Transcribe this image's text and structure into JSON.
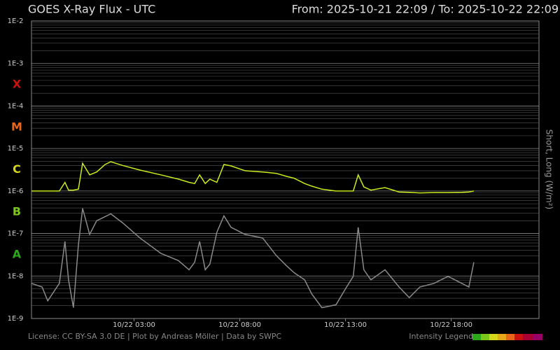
{
  "header": {
    "title": "GOES X-Ray Flux - UTC",
    "range": "From: 2025-10-21 22:09  /  To: 2025-10-22 22:09"
  },
  "footer": {
    "credits": "License: CC BY-SA 3.0 DE | Plot by Andreas Möller | Data by SWPC",
    "legend": "Intensity Legend"
  },
  "chart_data": {
    "type": "line",
    "y_label": "Short, Long (W/m²)",
    "log_y": true,
    "grid": true,
    "ylim": [
      1e-09,
      0.01
    ],
    "yticks": [
      {
        "value": 0.01,
        "label": "1E-2"
      },
      {
        "value": 0.001,
        "label": "1E-3"
      },
      {
        "value": 0.0001,
        "label": "1E-4"
      },
      {
        "value": 1e-05,
        "label": "1E-5"
      },
      {
        "value": 1e-06,
        "label": "1E-6"
      },
      {
        "value": 1e-07,
        "label": "1E-7"
      },
      {
        "value": 1e-08,
        "label": "1E-8"
      },
      {
        "value": 1e-09,
        "label": "1E-9"
      }
    ],
    "classes": [
      {
        "label": "X",
        "color": "#cc1111"
      },
      {
        "label": "M",
        "color": "#e8661a"
      },
      {
        "label": "C",
        "color": "#d8d81a"
      },
      {
        "label": "B",
        "color": "#7cc81a"
      },
      {
        "label": "A",
        "color": "#2aa81a"
      }
    ],
    "xlim": [
      "10/21 22:09",
      "10/22 22:09"
    ],
    "xticks": [
      "10/22 03:00",
      "10/22 08:00",
      "10/22 13:00",
      "10/22 18:00"
    ],
    "x": [
      "10/21 22:09",
      "10/21 22:39",
      "10/21 22:55",
      "10/21 23:28",
      "10/21 23:44",
      "10/21 23:54",
      "10/22 00:08",
      "10/22 00:22",
      "10/22 00:34",
      "10/22 00:54",
      "10/22 01:14",
      "10/22 01:38",
      "10/22 01:54",
      "10/22 02:27",
      "10/22 03:17",
      "10/22 04:16",
      "10/22 05:06",
      "10/22 05:36",
      "10/22 05:52",
      "10/22 06:06",
      "10/22 06:22",
      "10/22 06:35",
      "10/22 06:55",
      "10/22 07:15",
      "10/22 07:35",
      "10/22 08:15",
      "10/22 09:05",
      "10/22 09:44",
      "10/22 10:14",
      "10/22 10:34",
      "10/22 11:04",
      "10/22 11:24",
      "10/22 11:53",
      "10/22 12:33",
      "10/22 13:03",
      "10/22 13:22",
      "10/22 13:36",
      "10/22 13:52",
      "10/22 14:12",
      "10/22 14:52",
      "10/22 15:32",
      "10/22 16:01",
      "10/22 16:31",
      "10/22 17:11",
      "10/22 17:51",
      "10/22 18:30",
      "10/22 18:50",
      "10/22 19:04"
    ],
    "series": [
      {
        "color": "#8a8a8a",
        "values": [
          6.7e-09,
          5.5e-09,
          2.6e-09,
          6.7e-09,
          6.5e-08,
          8.1e-09,
          1.8e-09,
          5.4e-08,
          3.9e-07,
          9.5e-08,
          2e-07,
          2.5e-07,
          2.9e-07,
          1.8e-07,
          7.8e-08,
          3.4e-08,
          2.3e-08,
          1.4e-08,
          2.1e-08,
          6.5e-08,
          1.4e-08,
          1.9e-08,
          1.07e-07,
          2.6e-07,
          1.4e-07,
          9.5e-08,
          7.8e-08,
          3e-08,
          1.7e-08,
          1.2e-08,
          8.1e-09,
          3.8e-09,
          1.8e-09,
          2.1e-09,
          5.5e-09,
          9.8e-09,
          1.4e-07,
          1.4e-08,
          8.1e-09,
          1.4e-08,
          5.5e-09,
          3.1e-09,
          5.5e-09,
          6.7e-09,
          9.8e-09,
          6.7e-09,
          5.5e-09,
          2.1e-08
        ]
      },
      {
        "color": "#c8ec1e",
        "values": [
          1e-06,
          1e-06,
          1e-06,
          1e-06,
          1.6e-06,
          1.05e-06,
          1.05e-06,
          1.1e-06,
          4.5e-06,
          2.4e-06,
          2.8e-06,
          4.2e-06,
          4.9e-06,
          4e-06,
          3.1e-06,
          2.4e-06,
          1.9e-06,
          1.6e-06,
          1.5e-06,
          2.4e-06,
          1.5e-06,
          1.9e-06,
          1.6e-06,
          4.2e-06,
          3.9e-06,
          3e-06,
          2.8e-06,
          2.6e-06,
          2.2e-06,
          2e-06,
          1.5e-06,
          1.3e-06,
          1.1e-06,
          1e-06,
          1e-06,
          1e-06,
          2.4e-06,
          1.25e-06,
          1.05e-06,
          1.2e-06,
          9.5e-07,
          9.3e-07,
          9e-07,
          9.2e-07,
          9.2e-07,
          9.3e-07,
          9.5e-07,
          1e-06
        ]
      }
    ]
  }
}
